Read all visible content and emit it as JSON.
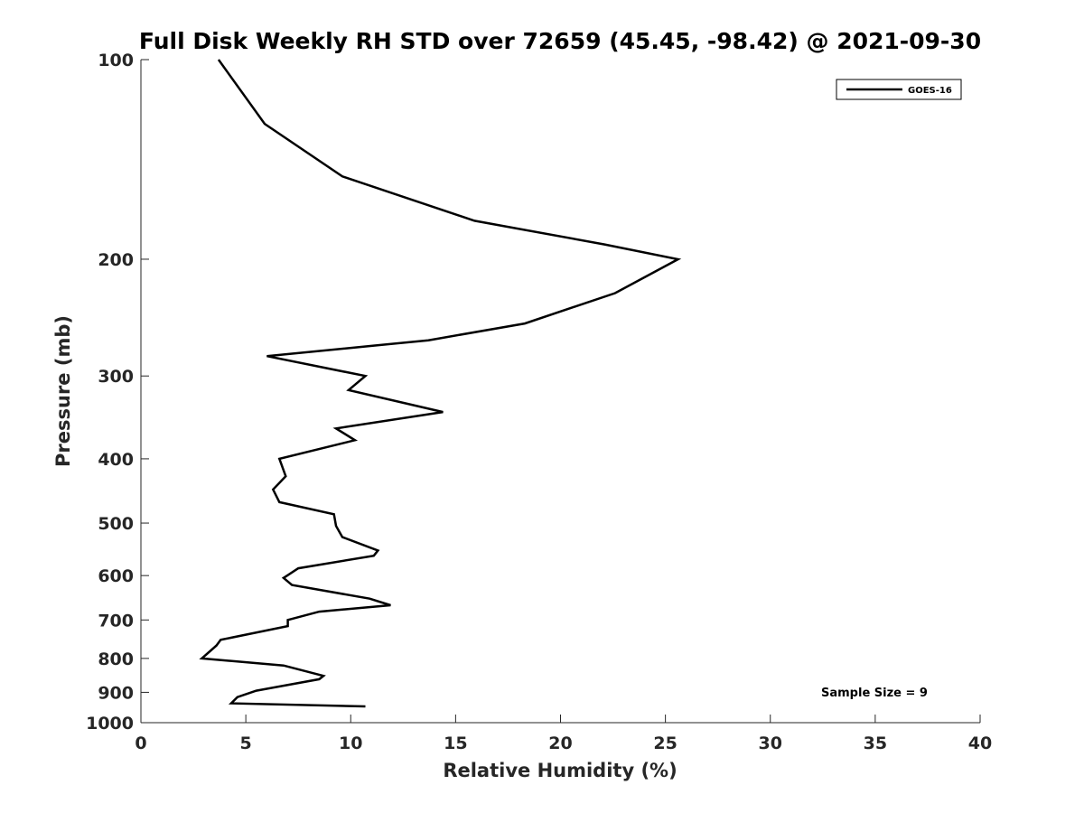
{
  "chart_data": {
    "type": "line",
    "title": "Full Disk Weekly RH STD over 72659 (45.45, -98.42) @ 2021-09-30",
    "xlabel": "Relative Humidity (%)",
    "ylabel": "Pressure (mb)",
    "xlim": [
      0,
      40
    ],
    "ylim": [
      100,
      1000
    ],
    "yscale": "log",
    "y_reversed": true,
    "xticks": [
      0,
      5,
      10,
      15,
      20,
      25,
      30,
      35,
      40
    ],
    "yticks": [
      100,
      200,
      300,
      400,
      500,
      600,
      700,
      800,
      900,
      1000
    ],
    "legend": {
      "placement": "top-right",
      "entries": [
        "GOES-16"
      ]
    },
    "annotation": "Sample Size = 9",
    "series": [
      {
        "name": "GOES-16",
        "color": "#000000",
        "points": [
          [
            3.7,
            100
          ],
          [
            5.9,
            125
          ],
          [
            9.6,
            150
          ],
          [
            15.9,
            175
          ],
          [
            22.1,
            190
          ],
          [
            25.6,
            200
          ],
          [
            22.6,
            225
          ],
          [
            18.3,
            250
          ],
          [
            13.7,
            265
          ],
          [
            6.0,
            280
          ],
          [
            10.7,
            300
          ],
          [
            9.9,
            315
          ],
          [
            14.4,
            340
          ],
          [
            9.3,
            360
          ],
          [
            10.2,
            375
          ],
          [
            6.6,
            400
          ],
          [
            6.9,
            425
          ],
          [
            6.3,
            445
          ],
          [
            6.6,
            465
          ],
          [
            9.2,
            485
          ],
          [
            9.3,
            505
          ],
          [
            9.6,
            525
          ],
          [
            11.3,
            550
          ],
          [
            11.1,
            560
          ],
          [
            7.5,
            585
          ],
          [
            6.8,
            605
          ],
          [
            7.2,
            620
          ],
          [
            10.9,
            650
          ],
          [
            11.9,
            665
          ],
          [
            8.5,
            680
          ],
          [
            7.0,
            700
          ],
          [
            7.0,
            715
          ],
          [
            3.8,
            750
          ],
          [
            3.6,
            765
          ],
          [
            2.9,
            800
          ],
          [
            6.8,
            820
          ],
          [
            8.7,
            850
          ],
          [
            8.5,
            860
          ],
          [
            5.5,
            895
          ],
          [
            4.6,
            915
          ],
          [
            4.3,
            935
          ],
          [
            10.7,
            945
          ]
        ]
      }
    ]
  }
}
